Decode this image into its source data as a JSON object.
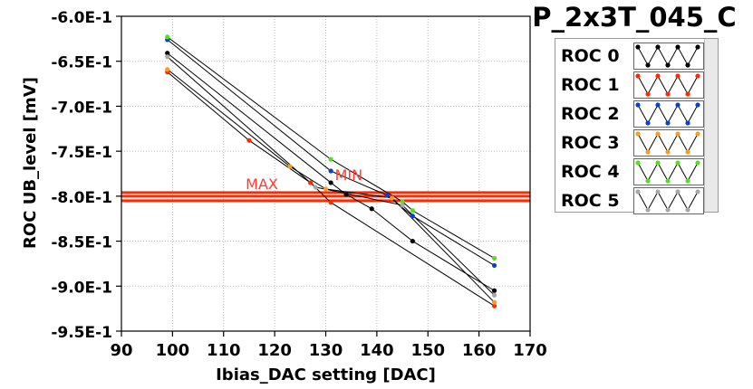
{
  "chart_data": {
    "type": "line",
    "title": "P_2x3T_045_C",
    "xlabel": "Ibias_DAC setting [DAC]",
    "ylabel": "ROC UB_level [mV]",
    "xlim": [
      90,
      170
    ],
    "ylim": [
      -0.95,
      -0.6
    ],
    "x_ticks": [
      90,
      100,
      110,
      120,
      130,
      140,
      150,
      160,
      170
    ],
    "y_ticks": [
      -0.6,
      -0.65,
      -0.7,
      -0.75,
      -0.8,
      -0.85,
      -0.9,
      -0.95
    ],
    "x_tick_labels": [
      "90",
      "100",
      "110",
      "120",
      "130",
      "140",
      "150",
      "160",
      "170"
    ],
    "y_tick_labels": [
      "-6.0E-1",
      "-6.5E-1",
      "-7.0E-1",
      "-7.5E-1",
      "-8.0E-1",
      "-8.5E-1",
      "-9.0E-1",
      "-9.5E-1"
    ],
    "grid": true,
    "legend_position": "right",
    "series": [
      {
        "name": "ROC 0",
        "color": "#000000",
        "points": [
          [
            99,
            -0.641
          ],
          [
            131,
            -0.785
          ],
          [
            134,
            -0.798
          ],
          [
            139,
            -0.814
          ],
          [
            147,
            -0.85
          ],
          [
            163,
            -0.905
          ]
        ]
      },
      {
        "name": "ROC 1",
        "color": "#ff2a00",
        "points": [
          [
            99,
            -0.662
          ],
          [
            115,
            -0.738
          ],
          [
            127,
            -0.785
          ],
          [
            131,
            -0.807
          ],
          [
            163,
            -0.922
          ]
        ]
      },
      {
        "name": "ROC 2",
        "color": "#0a3fd6",
        "points": [
          [
            99,
            -0.626
          ],
          [
            131,
            -0.772
          ],
          [
            142,
            -0.799
          ],
          [
            147,
            -0.822
          ],
          [
            163,
            -0.877
          ]
        ]
      },
      {
        "name": "ROC 3",
        "color": "#ff9a1a",
        "points": [
          [
            99,
            -0.659
          ],
          [
            123,
            -0.767
          ],
          [
            130,
            -0.792
          ],
          [
            143,
            -0.802
          ],
          [
            163,
            -0.918
          ]
        ]
      },
      {
        "name": "ROC 4",
        "color": "#55e01a",
        "points": [
          [
            99,
            -0.623
          ],
          [
            131,
            -0.759
          ],
          [
            145,
            -0.806
          ],
          [
            147,
            -0.816
          ],
          [
            163,
            -0.869
          ]
        ]
      },
      {
        "name": "ROC 5",
        "color": "#a8a8a8",
        "points": [
          [
            99,
            -0.645
          ],
          [
            128,
            -0.79
          ],
          [
            145,
            -0.81
          ],
          [
            163,
            -0.91
          ]
        ]
      }
    ],
    "reference_lines": [
      {
        "label": "MAX",
        "y": -0.796,
        "color": "#ff2a00"
      },
      {
        "label": "",
        "y": -0.8,
        "color": "#ff2a00"
      },
      {
        "label": "MIN",
        "y": -0.805,
        "color": "#ff2a00"
      }
    ],
    "reference_labels": [
      {
        "text": "MAX",
        "x": 117.5,
        "y": -0.792
      },
      {
        "text": "MIN",
        "x": 134.5,
        "y": -0.782
      }
    ]
  },
  "legend_title": "P_2x3T_045_C",
  "legend_items": [
    "ROC 0",
    "ROC 1",
    "ROC 2",
    "ROC 3",
    "ROC 4",
    "ROC 5"
  ]
}
